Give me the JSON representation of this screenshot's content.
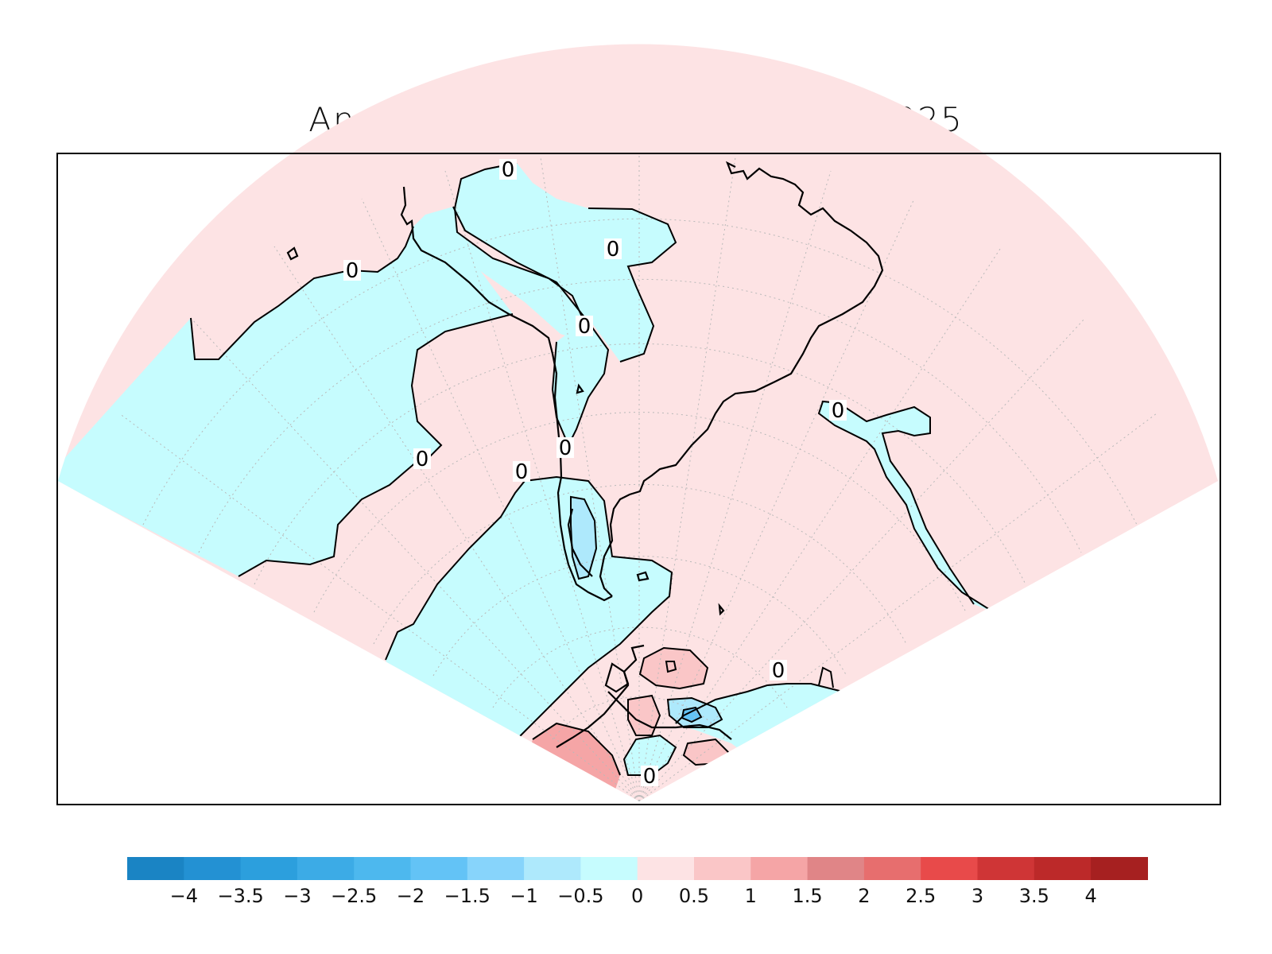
{
  "title": "Anomalias Temperatura Marzo 2025",
  "colors": {
    "positive_fill": "#fde3e4",
    "negative_fill": "#c6fcfe",
    "contour": "#000000",
    "grid": "#b9b9b9"
  },
  "contour_labels": [
    "0",
    "0",
    "0",
    "0",
    "0",
    "0",
    "0",
    "0",
    "0",
    "0",
    "0"
  ],
  "colorbar": {
    "colors": [
      "#1a84c4",
      "#2391d3",
      "#2c9fdd",
      "#3cabe6",
      "#4db8ee",
      "#63c3f6",
      "#87d4fb",
      "#aee9fc",
      "#c6fcfe",
      "#fde3e4",
      "#fac6c7",
      "#f5a5a6",
      "#e08587",
      "#e76e6e",
      "#e84a4a",
      "#cf3536",
      "#bc2929",
      "#a62020"
    ],
    "labels": [
      "−4",
      "−3.5",
      "−3",
      "−2.5",
      "−2",
      "−1.5",
      "−1",
      "−0.5",
      "0",
      "0.5",
      "1",
      "1.5",
      "2",
      "2.5",
      "3",
      "3.5",
      "4"
    ]
  }
}
